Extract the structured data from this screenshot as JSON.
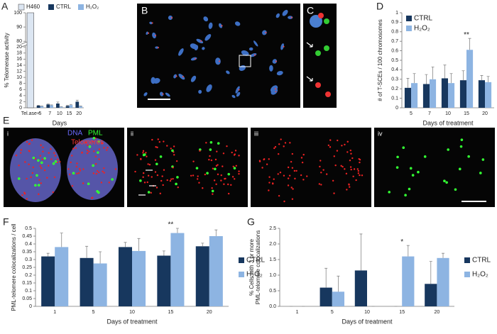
{
  "chart_data": [
    {
      "label": "A",
      "type": "bar",
      "y_label": "% Telomerase activity",
      "x_label": "Days",
      "categories": [
        "Tel.ase+",
        "5",
        "7",
        "10",
        "15",
        "20"
      ],
      "series": [
        {
          "name": "H460",
          "color": "#dce6f2",
          "values": [
            100,
            null,
            null,
            null,
            null,
            null
          ]
        },
        {
          "name": "CTRL",
          "color": "#17375e",
          "values": [
            null,
            0.7,
            1.1,
            1.4,
            0.6,
            2.0
          ],
          "errors": [
            null,
            0.15,
            0.15,
            0.5,
            0.2,
            0.5
          ]
        },
        {
          "name": "H₂O₂",
          "color": "#8db4e2",
          "values": [
            null,
            0.5,
            0.8,
            0.3,
            0.9,
            0.5
          ],
          "errors": [
            null,
            0.1,
            0.15,
            0.1,
            0.2,
            0.1
          ]
        }
      ],
      "ylim": [
        0,
        100
      ],
      "ybreak": [
        20,
        80
      ],
      "yticks": [
        0,
        2,
        4,
        6,
        8,
        10,
        12,
        14,
        16,
        18,
        20,
        80,
        90,
        100
      ],
      "legend": "top"
    },
    {
      "label": "D",
      "type": "bar",
      "y_label": "# of T-SCEs / 100 chromosomes",
      "x_label": "Days of treatment",
      "categories": [
        "5",
        "7",
        "10",
        "15",
        "20"
      ],
      "series": [
        {
          "name": "CTRL",
          "color": "#17375e",
          "values": [
            0.21,
            0.25,
            0.31,
            0.29,
            0.29
          ],
          "errors": [
            0.1,
            0.1,
            0.14,
            0.1,
            0.05
          ]
        },
        {
          "name": "H₂O₂",
          "color": "#8db4e2",
          "values": [
            0.26,
            0.3,
            0.26,
            0.61,
            0.27
          ],
          "errors": [
            0.1,
            0.13,
            0.1,
            0.12,
            0.06
          ]
        }
      ],
      "ylim": [
        0,
        1
      ],
      "yticks": [
        0,
        0.1,
        0.2,
        0.3,
        0.4,
        0.5,
        0.6,
        0.7,
        0.8,
        0.9,
        1
      ],
      "legend": "upper-left",
      "annotations": [
        {
          "text": "**",
          "category": "15"
        }
      ]
    },
    {
      "label": "F",
      "type": "bar",
      "y_label": "PML-telomere colocalizations / cell",
      "x_label": "Days of treatment",
      "categories": [
        "1",
        "5",
        "10",
        "15",
        "20"
      ],
      "series": [
        {
          "name": "CTRL",
          "color": "#17375e",
          "values": [
            0.32,
            0.31,
            0.38,
            0.325,
            0.385
          ],
          "errors": [
            0.02,
            0.075,
            0.03,
            0.03,
            0.02
          ]
        },
        {
          "name": "H₂O₂",
          "color": "#8db4e2",
          "values": [
            0.38,
            0.275,
            0.355,
            0.47,
            0.45
          ],
          "errors": [
            0.09,
            0.075,
            0.08,
            0.03,
            0.04
          ]
        }
      ],
      "ylim": [
        0,
        0.5
      ],
      "yticks": [
        0,
        0.05,
        0.1,
        0.15,
        0.2,
        0.25,
        0.3,
        0.35,
        0.4,
        0.45,
        0.5
      ],
      "legend": "right",
      "annotations": [
        {
          "text": "**",
          "category": "15"
        }
      ]
    },
    {
      "label": "G",
      "type": "bar",
      "y_label": [
        "% Cells with 3 or more",
        "PML-telomere colocalizations"
      ],
      "x_label": "Days of treatment",
      "categories": [
        "1",
        "5",
        "10",
        "15",
        "20"
      ],
      "series": [
        {
          "name": "CTRL",
          "color": "#17375e",
          "values": [
            0,
            0.6,
            1.15,
            0,
            0.72
          ],
          "errors": [
            0,
            0.62,
            1.17,
            0,
            0.72
          ]
        },
        {
          "name": "H₂O₂",
          "color": "#8db4e2",
          "values": [
            0,
            0.47,
            0,
            1.6,
            1.55
          ],
          "errors": [
            0,
            0.5,
            0,
            0.35,
            0.15
          ]
        }
      ],
      "ylim": [
        0,
        2.5
      ],
      "yticks": [
        {
          "value": 0,
          "label": "0.0"
        },
        0.5,
        {
          "value": 1,
          "label": "1.0"
        },
        1.5,
        {
          "value": 2,
          "label": "2.0"
        },
        2.5
      ],
      "legend": "right",
      "annotations": [
        {
          "text": "*",
          "category": "15"
        }
      ]
    }
  ],
  "image_panels": [
    {
      "label": "B"
    },
    {
      "label": "C"
    }
  ],
  "panel_e": {
    "label": "E",
    "subpanels": [
      "i",
      "ii",
      "iii",
      "iv"
    ],
    "stain_legend": [
      "DNA",
      "PML",
      "Telomeres"
    ]
  }
}
